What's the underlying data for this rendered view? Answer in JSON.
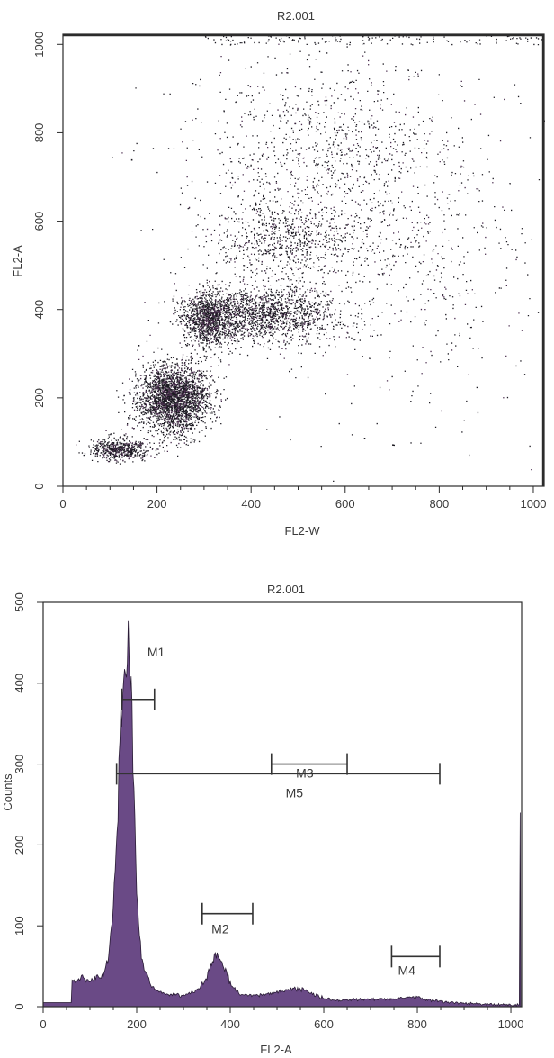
{
  "colors": {
    "dots": "#1c1a22",
    "dots_alt": "#4a2d4f",
    "histogram_fill": "#6a4a86",
    "histogram_outline": "#2a1c36",
    "axis": "#2b2b2b",
    "marker": "#333333"
  },
  "chart_data": [
    {
      "type": "scatter",
      "title": "R2.001",
      "xlabel": "FL2-W",
      "ylabel": "FL2-A",
      "xlim": [
        0,
        1023
      ],
      "ylim": [
        0,
        1023
      ],
      "xticks": [
        0,
        200,
        400,
        600,
        800,
        1000
      ],
      "yticks": [
        0,
        200,
        400,
        600,
        800,
        1000
      ],
      "grid": false,
      "clusters": [
        {
          "x": 120,
          "y": 85,
          "sx": 30,
          "sy": 12,
          "n": 550
        },
        {
          "x": 235,
          "y": 200,
          "sx": 38,
          "sy": 38,
          "n": 2600
        },
        {
          "x": 310,
          "y": 380,
          "sx": 28,
          "sy": 32,
          "n": 1100
        },
        {
          "x": 430,
          "y": 390,
          "sx": 75,
          "sy": 30,
          "n": 1500
        },
        {
          "x": 470,
          "y": 555,
          "sx": 75,
          "sy": 45,
          "n": 650
        },
        {
          "x": 560,
          "y": 740,
          "sx": 150,
          "sy": 120,
          "n": 1000
        },
        {
          "x": 700,
          "y": 520,
          "sx": 170,
          "sy": 170,
          "n": 650
        }
      ],
      "points": [
        {
          "x": 145,
          "y": 740
        },
        {
          "x": 165,
          "y": 580
        },
        {
          "x": 160,
          "y": 320
        },
        {
          "x": 640,
          "y": 110
        },
        {
          "x": 700,
          "y": 95
        }
      ]
    },
    {
      "type": "area",
      "title": "R2.001",
      "xlabel": "FL2-A",
      "ylabel": "Counts",
      "xlim": [
        0,
        1023
      ],
      "ylim": [
        0,
        500
      ],
      "xticks": [
        0,
        200,
        400,
        600,
        800,
        1000
      ],
      "yticks": [
        0,
        100,
        200,
        300,
        400,
        500
      ],
      "grid": false,
      "histogram": {
        "x": [
          0,
          60,
          62,
          70,
          85,
          100,
          115,
          130,
          140,
          150,
          160,
          168,
          175,
          180,
          185,
          190,
          195,
          200,
          210,
          230,
          260,
          300,
          330,
          350,
          360,
          370,
          380,
          390,
          400,
          420,
          450,
          500,
          540,
          560,
          580,
          620,
          700,
          760,
          800,
          820,
          850,
          900,
          1000,
          1018,
          1020,
          1021
        ],
        "counts": [
          5,
          5,
          35,
          32,
          37,
          30,
          38,
          40,
          60,
          120,
          250,
          380,
          430,
          448,
          440,
          360,
          240,
          130,
          60,
          25,
          15,
          14,
          20,
          35,
          55,
          65,
          60,
          45,
          28,
          15,
          13,
          18,
          22,
          20,
          14,
          8,
          9,
          10,
          12,
          9,
          6,
          4,
          2,
          2,
          240,
          5
        ]
      },
      "markers": [
        {
          "name": "M1",
          "x1": 168,
          "x2": 238,
          "y": 380
        },
        {
          "name": "M2",
          "x1": 340,
          "x2": 448,
          "y": 115
        },
        {
          "name": "M3",
          "x1": 488,
          "x2": 650,
          "y": 300
        },
        {
          "name": "M4",
          "x1": 745,
          "x2": 848,
          "y": 62
        },
        {
          "name": "M5",
          "x1": 157,
          "x2": 848,
          "y": 288
        }
      ]
    }
  ]
}
